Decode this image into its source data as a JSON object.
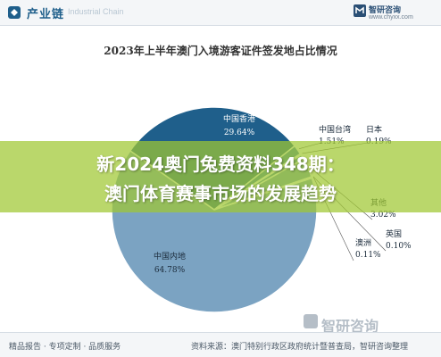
{
  "header": {
    "title": "产业链",
    "subtitle": "Industrial Chain",
    "brand": "智研咨询",
    "url": "www.chyxx.com"
  },
  "chart_data": {
    "type": "pie",
    "title": "2023年上半年澳门入境游客证件签发地占比情况",
    "slices": [
      {
        "label": "中国内地",
        "value": 64.78,
        "value_label": "64.78%",
        "color": "#7ba3c2"
      },
      {
        "label": "中国香港",
        "value": 29.64,
        "value_label": "29.64%",
        "color": "#1f5f8b"
      },
      {
        "label": "中国台湾",
        "value": 1.51,
        "value_label": "1.51%",
        "color": "#3e7dab"
      },
      {
        "label": "日本",
        "value": 0.19,
        "value_label": "0.19%",
        "color": "#5a8fb8"
      },
      {
        "label": "韩国",
        "value": 0.75,
        "value_label": "",
        "color": "#4b86b1"
      },
      {
        "label": "其他",
        "value": 3.02,
        "value_label": "3.02%",
        "color": "#6f9bbd"
      },
      {
        "label": "英国",
        "value": 0.1,
        "value_label": "0.10%",
        "color": "#87abc6"
      },
      {
        "label": "澳洲",
        "value": 0.11,
        "value_label": "0.11%",
        "color": "#9bb8cf"
      }
    ]
  },
  "banner": {
    "line1": "新2024奥门兔费资料348期：",
    "line2": "澳门体育赛事市场的发展趋势"
  },
  "footer": {
    "left": "精品报告 · 专项定制 · 品质服务",
    "right": "资料来源：澳门特别行政区政府统计暨普查局，智研咨询整理"
  },
  "watermark": "智研咨询"
}
